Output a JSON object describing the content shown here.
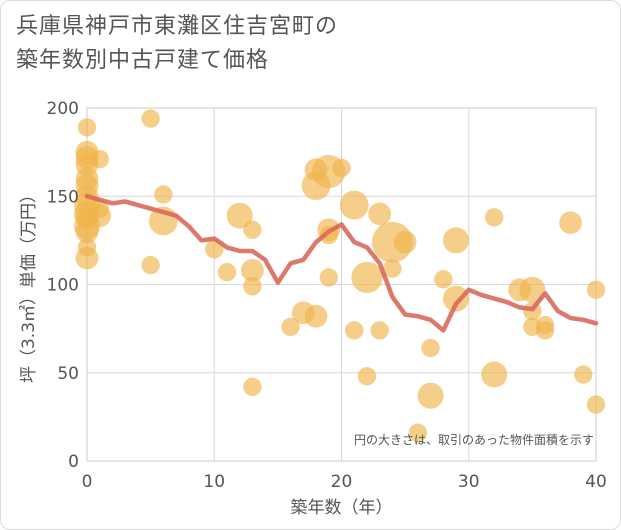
{
  "title_lines": [
    "兵庫県神戸市東灘区住吉宮町の",
    "築年数別中古戸建て価格"
  ],
  "chart_data": {
    "type": "scatter",
    "xlabel": "築年数（年）",
    "ylabel": "坪（3.3㎡）単価（万円）",
    "xlim": [
      0,
      40
    ],
    "ylim": [
      0,
      200
    ],
    "xticks": [
      0,
      10,
      20,
      30,
      40
    ],
    "yticks": [
      0,
      50,
      100,
      150,
      200
    ],
    "grid": true,
    "note": "円の大きさは、取引のあった物件面積を示す",
    "colors": {
      "bubble": "#f0b44c",
      "line": "#d9695a",
      "grid": "#d8d8d8",
      "plot_border": "#cccccc"
    },
    "bubble_series": [
      {
        "x": 0,
        "y": 189,
        "s": 1
      },
      {
        "x": 0,
        "y": 175,
        "s": 2
      },
      {
        "x": 0,
        "y": 172,
        "s": 2
      },
      {
        "x": 0,
        "y": 168,
        "s": 2
      },
      {
        "x": 0,
        "y": 160,
        "s": 2
      },
      {
        "x": 0,
        "y": 156,
        "s": 2
      },
      {
        "x": 0,
        "y": 150,
        "s": 2
      },
      {
        "x": 0,
        "y": 145,
        "s": 3
      },
      {
        "x": 0,
        "y": 140,
        "s": 3
      },
      {
        "x": 0,
        "y": 138,
        "s": 2
      },
      {
        "x": 0,
        "y": 133,
        "s": 3
      },
      {
        "x": 0,
        "y": 130,
        "s": 2
      },
      {
        "x": 0,
        "y": 121,
        "s": 1
      },
      {
        "x": 0,
        "y": 115,
        "s": 2
      },
      {
        "x": 1,
        "y": 171,
        "s": 1
      },
      {
        "x": 1,
        "y": 143,
        "s": 1
      },
      {
        "x": 1,
        "y": 139,
        "s": 2
      },
      {
        "x": 5,
        "y": 194,
        "s": 1
      },
      {
        "x": 5,
        "y": 111,
        "s": 1
      },
      {
        "x": 6,
        "y": 151,
        "s": 1
      },
      {
        "x": 6,
        "y": 136,
        "s": 4
      },
      {
        "x": 10,
        "y": 120,
        "s": 1
      },
      {
        "x": 11,
        "y": 107,
        "s": 1
      },
      {
        "x": 12,
        "y": 139,
        "s": 3
      },
      {
        "x": 13,
        "y": 131,
        "s": 1
      },
      {
        "x": 13,
        "y": 108,
        "s": 2
      },
      {
        "x": 13,
        "y": 99,
        "s": 1
      },
      {
        "x": 13,
        "y": 42,
        "s": 1
      },
      {
        "x": 16,
        "y": 76,
        "s": 1
      },
      {
        "x": 17,
        "y": 84,
        "s": 2
      },
      {
        "x": 18,
        "y": 82,
        "s": 2
      },
      {
        "x": 18,
        "y": 165,
        "s": 2
      },
      {
        "x": 18,
        "y": 156,
        "s": 4
      },
      {
        "x": 19,
        "y": 164,
        "s": 6
      },
      {
        "x": 19,
        "y": 131,
        "s": 2
      },
      {
        "x": 19,
        "y": 128,
        "s": 1
      },
      {
        "x": 19,
        "y": 104,
        "s": 1
      },
      {
        "x": 20,
        "y": 166,
        "s": 1
      },
      {
        "x": 21,
        "y": 145,
        "s": 4
      },
      {
        "x": 21,
        "y": 74,
        "s": 1
      },
      {
        "x": 22,
        "y": 104,
        "s": 5
      },
      {
        "x": 22,
        "y": 48,
        "s": 1
      },
      {
        "x": 23,
        "y": 140,
        "s": 2
      },
      {
        "x": 23,
        "y": 74,
        "s": 1
      },
      {
        "x": 24,
        "y": 124,
        "s": 10
      },
      {
        "x": 24,
        "y": 109,
        "s": 1
      },
      {
        "x": 25,
        "y": 124,
        "s": 2
      },
      {
        "x": 26,
        "y": 16,
        "s": 1
      },
      {
        "x": 27,
        "y": 64,
        "s": 1
      },
      {
        "x": 27,
        "y": 37,
        "s": 3
      },
      {
        "x": 28,
        "y": 103,
        "s": 1
      },
      {
        "x": 29,
        "y": 125,
        "s": 3
      },
      {
        "x": 29,
        "y": 92,
        "s": 3
      },
      {
        "x": 32,
        "y": 138,
        "s": 1
      },
      {
        "x": 32,
        "y": 49,
        "s": 3
      },
      {
        "x": 34,
        "y": 97,
        "s": 2
      },
      {
        "x": 35,
        "y": 97,
        "s": 3
      },
      {
        "x": 35,
        "y": 85,
        "s": 1
      },
      {
        "x": 35,
        "y": 76,
        "s": 1
      },
      {
        "x": 36,
        "y": 77,
        "s": 1
      },
      {
        "x": 36,
        "y": 74,
        "s": 1
      },
      {
        "x": 38,
        "y": 135,
        "s": 2
      },
      {
        "x": 39,
        "y": 49,
        "s": 1
      },
      {
        "x": 40,
        "y": 97,
        "s": 1
      },
      {
        "x": 40,
        "y": 32,
        "s": 1
      }
    ],
    "line_series": [
      {
        "x": 0,
        "y": 150
      },
      {
        "x": 1,
        "y": 148
      },
      {
        "x": 2,
        "y": 146
      },
      {
        "x": 3,
        "y": 147
      },
      {
        "x": 4,
        "y": 145
      },
      {
        "x": 5,
        "y": 143
      },
      {
        "x": 6,
        "y": 141
      },
      {
        "x": 7,
        "y": 139
      },
      {
        "x": 8,
        "y": 133
      },
      {
        "x": 9,
        "y": 125
      },
      {
        "x": 10,
        "y": 126
      },
      {
        "x": 11,
        "y": 121
      },
      {
        "x": 12,
        "y": 119
      },
      {
        "x": 13,
        "y": 119
      },
      {
        "x": 14,
        "y": 114
      },
      {
        "x": 15,
        "y": 101
      },
      {
        "x": 16,
        "y": 112
      },
      {
        "x": 17,
        "y": 114
      },
      {
        "x": 18,
        "y": 124
      },
      {
        "x": 19,
        "y": 130
      },
      {
        "x": 20,
        "y": 134
      },
      {
        "x": 21,
        "y": 124
      },
      {
        "x": 22,
        "y": 121
      },
      {
        "x": 23,
        "y": 112
      },
      {
        "x": 24,
        "y": 93
      },
      {
        "x": 25,
        "y": 83
      },
      {
        "x": 26,
        "y": 82
      },
      {
        "x": 27,
        "y": 80
      },
      {
        "x": 28,
        "y": 74
      },
      {
        "x": 29,
        "y": 89
      },
      {
        "x": 30,
        "y": 97
      },
      {
        "x": 31,
        "y": 94
      },
      {
        "x": 32,
        "y": 92
      },
      {
        "x": 33,
        "y": 90
      },
      {
        "x": 34,
        "y": 87
      },
      {
        "x": 35,
        "y": 86
      },
      {
        "x": 36,
        "y": 95
      },
      {
        "x": 37,
        "y": 85
      },
      {
        "x": 38,
        "y": 81
      },
      {
        "x": 39,
        "y": 80
      },
      {
        "x": 40,
        "y": 78
      }
    ]
  }
}
